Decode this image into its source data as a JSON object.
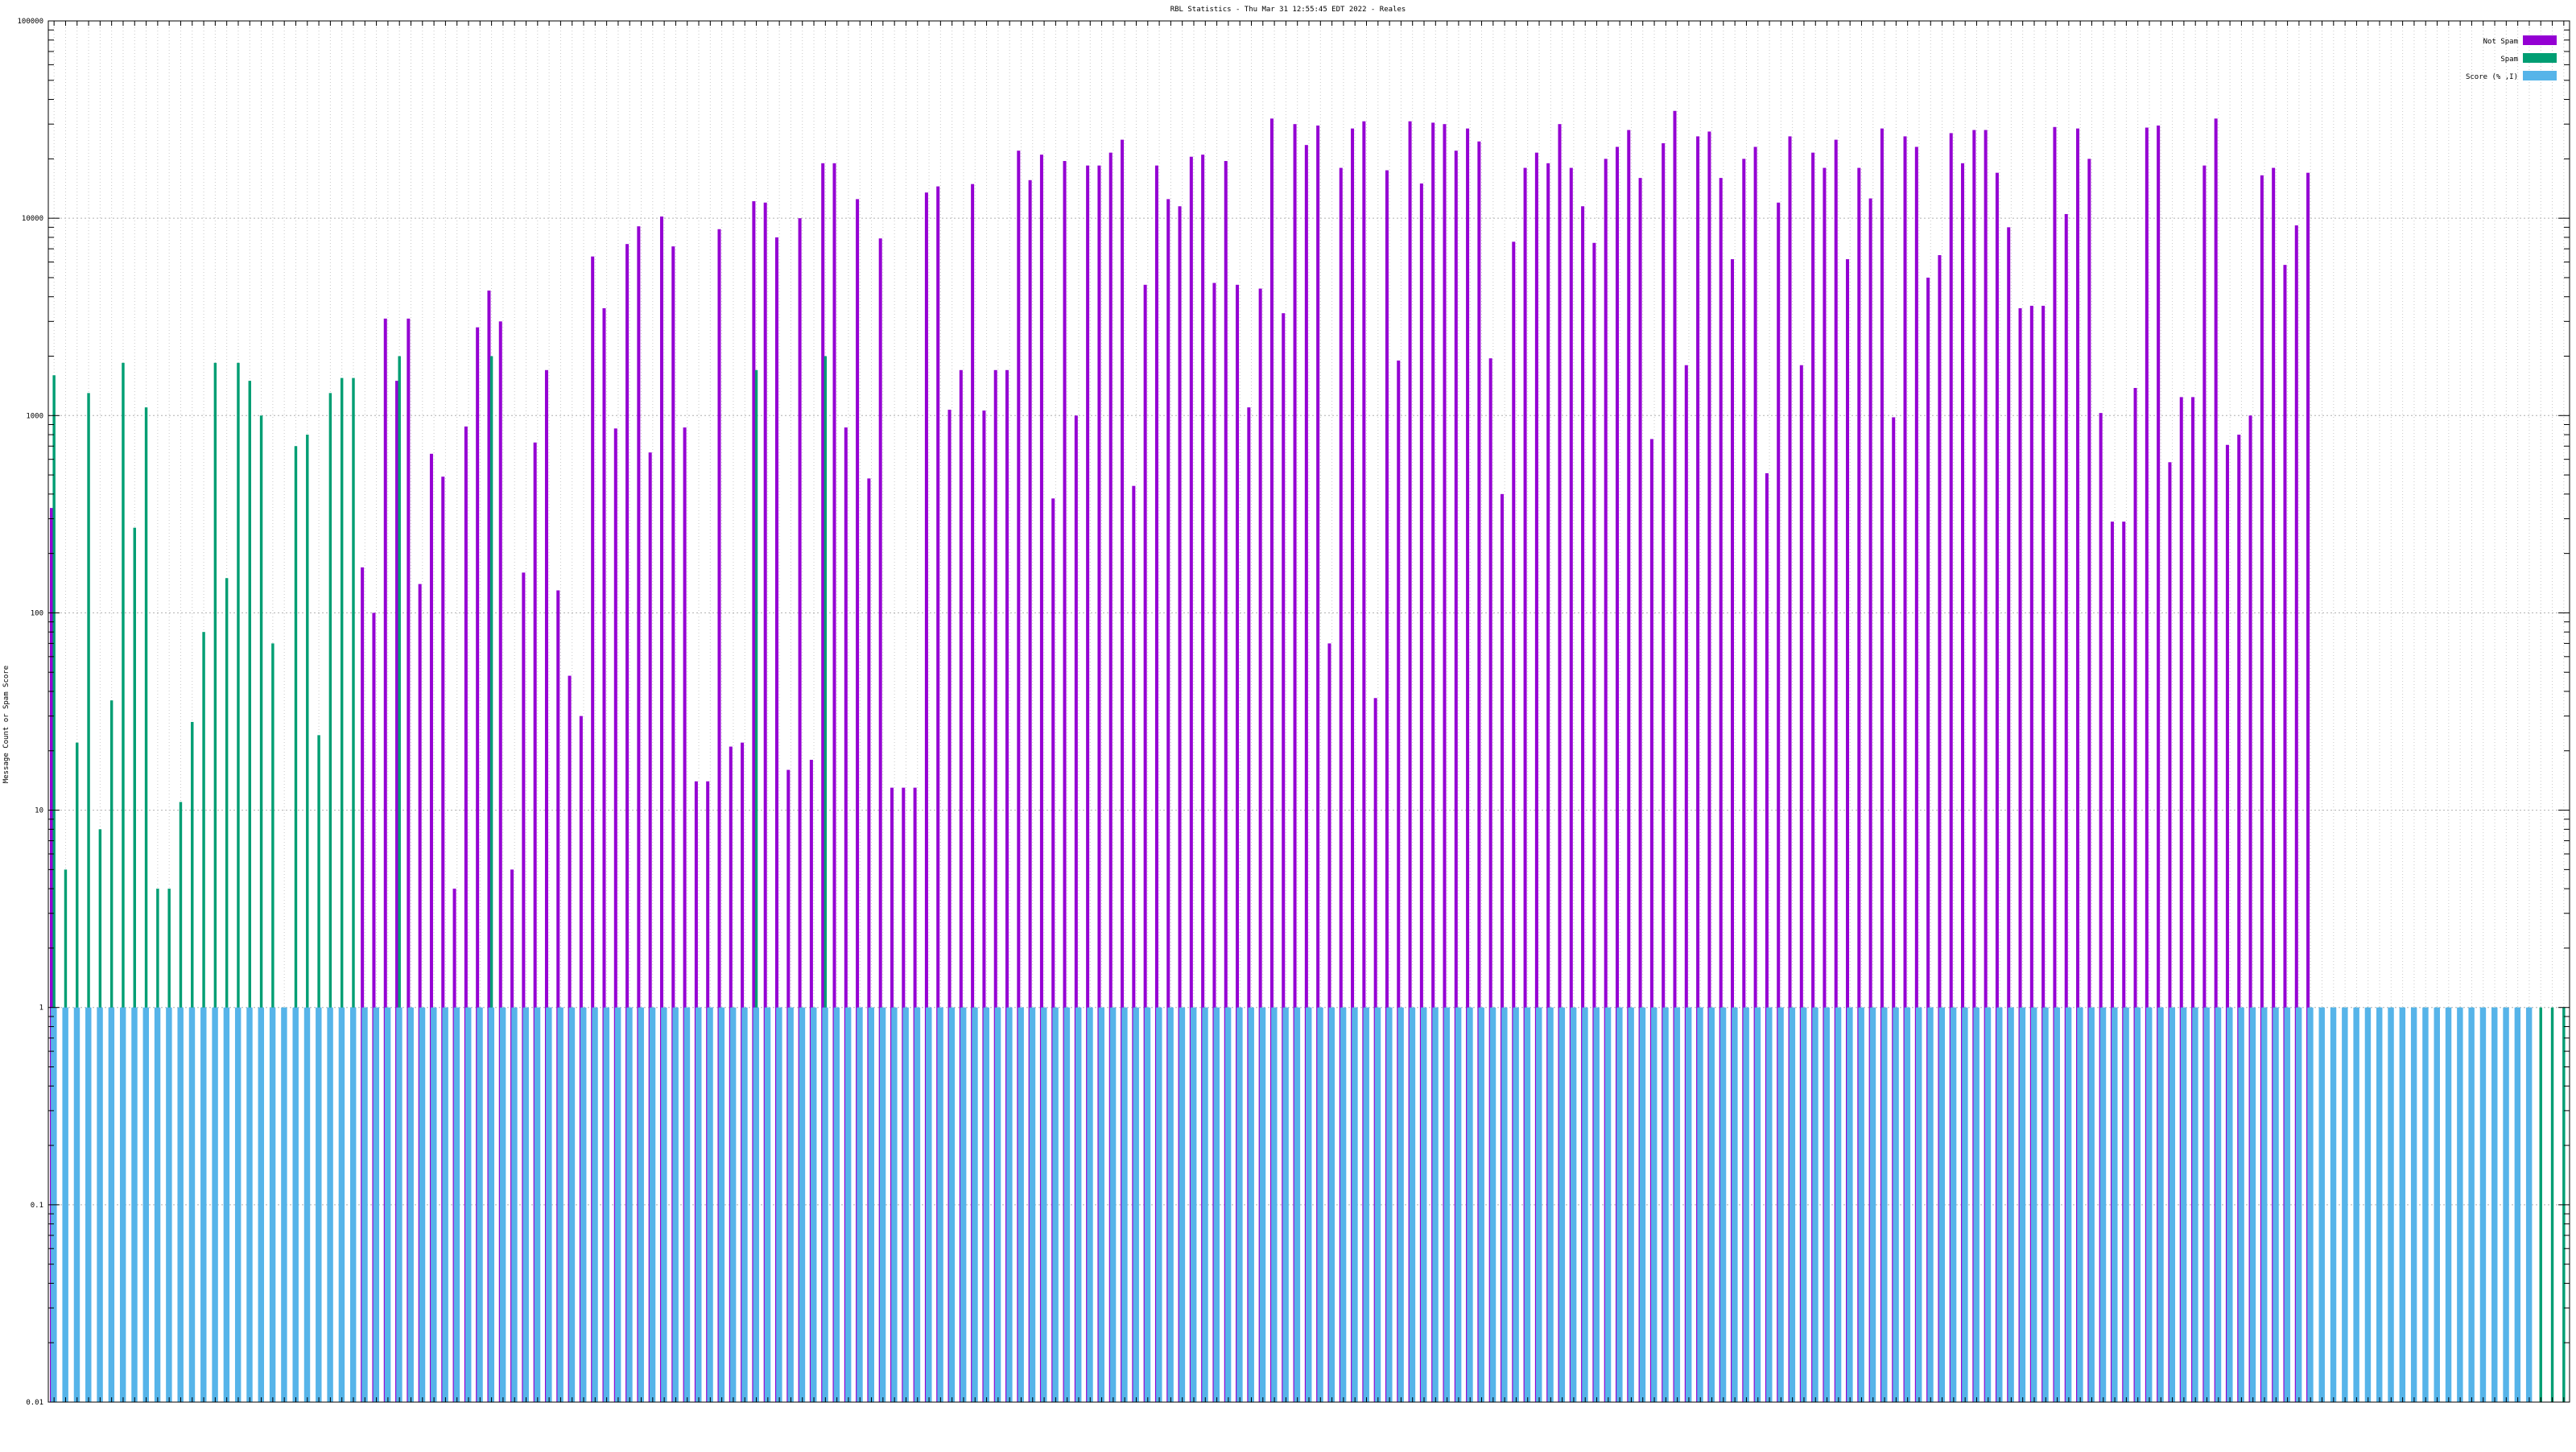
{
  "chart_data": {
    "type": "bar",
    "title": "RBL Statistics - Thu Mar 31 12:55:45 EDT 2022 - Reales",
    "xlabel": "",
    "ylabel": "Message Count or Spam Score",
    "y_scale": "log",
    "ylim": [
      0.01,
      100000
    ],
    "ytick_labels": [
      "100000",
      "10000",
      "1000",
      "100",
      "10",
      "1",
      "0.1",
      "0.01"
    ],
    "grid": true,
    "legend_position": "top-right",
    "series": [
      {
        "name": "Not Spam",
        "color": "#9400d3",
        "values": [
          340,
          0,
          0,
          0,
          0,
          0,
          0,
          0,
          0,
          0,
          0,
          0,
          0,
          0,
          0,
          0,
          0,
          0,
          0,
          0,
          0,
          0,
          0,
          0,
          0,
          0,
          0,
          170,
          100,
          3100,
          1500,
          3100,
          140,
          640,
          490,
          4,
          880,
          2800,
          4300,
          3000,
          5,
          160,
          730,
          1700,
          130,
          48,
          30,
          6400,
          3500,
          860,
          7400,
          9100,
          650,
          10200,
          7200,
          870,
          14,
          14,
          8800,
          21,
          22,
          12200,
          12000,
          8000,
          16,
          10000,
          18,
          19000,
          19000,
          870,
          12500,
          480,
          7900,
          13,
          13,
          13,
          13500,
          14500,
          1070,
          1700,
          14900,
          1060,
          1700,
          1700,
          22000,
          15600,
          21000,
          380,
          19500,
          1000,
          18500,
          18500,
          21500,
          25000,
          440,
          4600,
          18500,
          12500,
          11500,
          20500,
          21000,
          4700,
          19500,
          4600,
          1100,
          4400,
          32000,
          3300,
          30000,
          23500,
          29500,
          70,
          18000,
          28500,
          31000,
          37,
          17500,
          1900,
          31000,
          15000,
          30500,
          30000,
          22000,
          28500,
          24500,
          1950,
          400,
          7600,
          18000,
          21500,
          19000,
          30000,
          18000,
          11500,
          7500,
          20000,
          23000,
          28000,
          16000,
          760,
          24000,
          35000,
          1800,
          26000,
          27500,
          16000,
          6200,
          20000,
          23000,
          510,
          12000,
          26000,
          1800,
          21500,
          18000,
          25000,
          6200,
          18000,
          12600,
          28500,
          980,
          26000,
          23000,
          5000,
          6500,
          27000,
          19000,
          28000,
          28000,
          17000,
          9000,
          3500,
          3600,
          3600,
          29000,
          10500,
          28500,
          20000,
          1030,
          290,
          290,
          1380,
          28800,
          29500,
          580,
          1240,
          1240,
          18500,
          32000,
          710,
          800,
          1000,
          16500,
          18000,
          5800,
          9200,
          17000
        ]
      },
      {
        "name": "Spam",
        "color": "#009e73",
        "values": [
          1600,
          5,
          22,
          1300,
          8,
          36,
          1850,
          270,
          1100,
          4,
          4,
          11,
          28,
          80,
          1850,
          150,
          1850,
          1500,
          1000,
          70,
          1,
          700,
          800,
          24,
          1300,
          1550,
          1550,
          1,
          1,
          1,
          2000,
          1,
          1,
          1,
          1,
          1,
          1,
          1,
          2000,
          1,
          1,
          1,
          1,
          1,
          1,
          1,
          1,
          1,
          1,
          1,
          1,
          1,
          1,
          1,
          1,
          1,
          1,
          1,
          1,
          1,
          1,
          1700,
          1,
          1,
          1,
          1,
          1,
          2000,
          1,
          1,
          1,
          1,
          1,
          1,
          1,
          1,
          1,
          1,
          1,
          1,
          1,
          1,
          1,
          1,
          1,
          1,
          1,
          1,
          1,
          1,
          1,
          1,
          1,
          1,
          1,
          1,
          1,
          1,
          1,
          1,
          1,
          1,
          1,
          1,
          1,
          1,
          1,
          1,
          1,
          1,
          1,
          1,
          1,
          1,
          1,
          1,
          1,
          1,
          1,
          1,
          1,
          1,
          1,
          1,
          1,
          1,
          1,
          1,
          1,
          1,
          1,
          1,
          1,
          1,
          1,
          1,
          1,
          1,
          1,
          1,
          1,
          1,
          1,
          1,
          1,
          1,
          1,
          1,
          1,
          1,
          1,
          1,
          1,
          1,
          1,
          1,
          1,
          1,
          1,
          1,
          1,
          1,
          1,
          1,
          1,
          1,
          1,
          1,
          1,
          1,
          1,
          1,
          1,
          1,
          1,
          1,
          1,
          1,
          1,
          1,
          1,
          1,
          1,
          1,
          1,
          1,
          1,
          1,
          1,
          1,
          1,
          1,
          1,
          1,
          1,
          1,
          1,
          1,
          1,
          1,
          1,
          1,
          1,
          1,
          1,
          1,
          1,
          1,
          1,
          1,
          1,
          1,
          1,
          1,
          1,
          1,
          1,
          1,
          1
        ]
      },
      {
        "name": "Score (% ,I)",
        "color": "#56b4e9",
        "values": [
          1,
          1,
          1,
          1,
          1,
          1,
          1,
          1,
          1,
          1,
          1,
          1,
          1,
          1,
          1,
          1,
          1,
          1,
          1,
          1,
          1,
          1,
          1,
          1,
          1,
          1,
          1,
          1,
          1,
          1,
          1,
          1,
          1,
          1,
          1,
          1,
          1,
          1,
          1,
          1,
          1,
          1,
          1,
          1,
          1,
          1,
          1,
          1,
          1,
          1,
          1,
          1,
          1,
          1,
          1,
          1,
          1,
          1,
          1,
          1,
          1,
          1,
          1,
          1,
          1,
          1,
          1,
          1,
          1,
          1,
          1,
          1,
          1,
          1,
          1,
          1,
          1,
          1,
          1,
          1,
          1,
          1,
          1,
          1,
          1,
          1,
          1,
          1,
          1,
          1,
          1,
          1,
          1,
          1,
          1,
          1,
          1,
          1,
          1,
          1,
          1,
          1,
          1,
          1,
          1,
          1,
          1,
          1,
          1,
          1,
          1,
          1,
          1,
          1,
          1,
          1,
          1,
          1,
          1,
          1,
          1,
          1,
          1,
          1,
          1,
          1,
          1,
          1,
          1,
          1,
          1,
          1,
          1,
          1,
          1,
          1,
          1,
          1,
          1,
          1,
          1,
          1,
          1,
          1,
          1,
          1,
          1,
          1,
          1,
          1,
          1,
          1,
          1,
          1,
          1,
          1,
          1,
          1,
          1,
          1,
          1,
          1,
          1,
          1,
          1,
          1,
          1,
          1,
          1,
          1,
          1,
          1,
          1,
          1,
          1,
          1,
          1,
          1,
          1,
          1,
          1,
          1,
          1,
          1,
          1,
          1,
          1,
          1,
          1,
          1,
          1,
          1,
          1,
          1,
          1,
          1,
          1,
          1,
          1,
          1,
          1,
          1,
          1,
          1,
          1,
          1,
          1,
          1,
          1,
          1,
          1,
          1,
          1,
          1,
          1,
          1
        ]
      }
    ]
  }
}
